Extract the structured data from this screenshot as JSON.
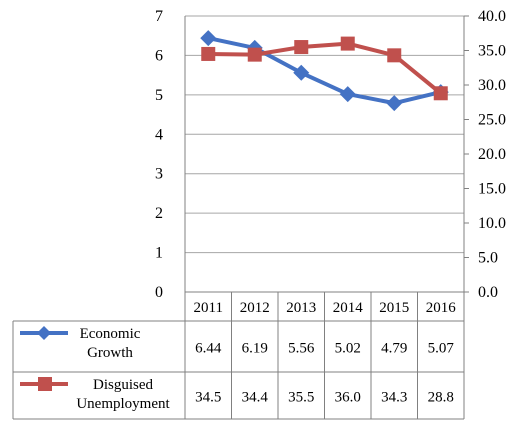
{
  "chart_data": {
    "type": "line",
    "title": "",
    "categories": [
      "2011",
      "2012",
      "2013",
      "2014",
      "2015",
      "2016"
    ],
    "axes": {
      "left": {
        "ylim": [
          0,
          7
        ],
        "ticks": [
          "0",
          "1",
          "2",
          "3",
          "4",
          "5",
          "6",
          "7"
        ]
      },
      "right": {
        "ylim": [
          0,
          40
        ],
        "ticks": [
          "0.0",
          "5.0",
          "10.0",
          "15.0",
          "20.0",
          "25.0",
          "30.0",
          "35.0",
          "40.0"
        ]
      }
    },
    "grid": true,
    "legend": "data-table-left",
    "series": [
      {
        "name": "Economic Growth",
        "name_lines": [
          "Economic",
          "Growth"
        ],
        "axis": "left",
        "color": "#4472C4",
        "marker": "diamond",
        "values": [
          6.44,
          6.19,
          5.56,
          5.02,
          4.79,
          5.07
        ],
        "labels": [
          "6.44",
          "6.19",
          "5.56",
          "5.02",
          "4.79",
          "5.07"
        ]
      },
      {
        "name": "Disguised Unemployment",
        "name_lines": [
          "Disguised",
          "Unemployment"
        ],
        "axis": "right",
        "color": "#C0504D",
        "marker": "square",
        "values": [
          34.5,
          34.4,
          35.5,
          36.0,
          34.3,
          28.8
        ],
        "labels": [
          "34.5",
          "34.4",
          "35.5",
          "36.0",
          "34.3",
          "28.8"
        ]
      }
    ]
  }
}
